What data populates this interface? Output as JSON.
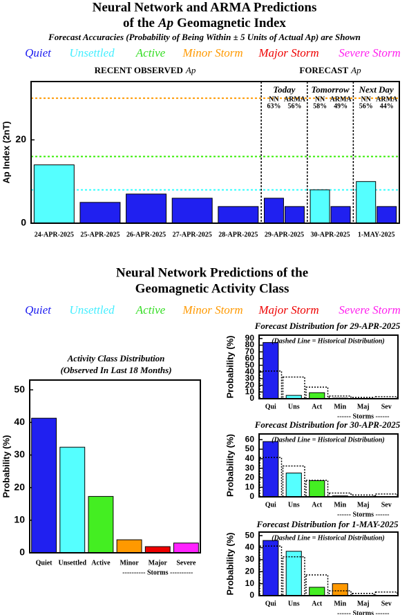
{
  "chart_data": [
    {
      "type": "bar",
      "title": [
        "Neural Network and ARMA Predictions",
        "of the",
        "Ap",
        "Geomagnetic Index"
      ],
      "subtitle": "Forecast Accuracies (Probability of Being Within ± 5 Units of Actual Ap) are Shown",
      "legend": [
        {
          "name": "Quiet",
          "color": "#2020f0"
        },
        {
          "name": "Unsettled",
          "color": "#44eeff"
        },
        {
          "name": "Active",
          "color": "#33dd22"
        },
        {
          "name": "Minor Storm",
          "color": "#ff9900"
        },
        {
          "name": "Major Storm",
          "color": "#ee0000"
        },
        {
          "name": "Severe Storm",
          "color": "#ff22ee"
        }
      ],
      "section_labels": [
        [
          "RECENT OBSERVED",
          "Ap"
        ],
        [
          "FORECAST",
          "Ap"
        ]
      ],
      "ylabel": "Ap Index (2nT)",
      "ylim": [
        0,
        34
      ],
      "yticks": [
        0,
        20
      ],
      "categories": [
        "24-APR-2025",
        "25-APR-2025",
        "26-APR-2025",
        "27-APR-2025",
        "28-APR-2025",
        "29-APR-2025",
        "30-APR-2025",
        "1-MAY-2025"
      ],
      "series": [
        {
          "values": [
            14,
            5,
            7,
            6,
            4,
            null,
            null,
            null
          ],
          "colors": [
            "#55ffff",
            "#2020f0",
            "#2020f0",
            "#2020f0",
            "#2020f0",
            null,
            null,
            null
          ]
        },
        {
          "name": "NN",
          "values": [
            null,
            null,
            null,
            null,
            null,
            6,
            8,
            10
          ],
          "colors": [
            null,
            null,
            null,
            null,
            null,
            "#2020f0",
            "#55ffff",
            "#55ffff"
          ]
        },
        {
          "name": "ARMA",
          "values": [
            null,
            null,
            null,
            null,
            null,
            4,
            4,
            4
          ],
          "colors": [
            null,
            null,
            null,
            null,
            null,
            "#2020f0",
            "#2020f0",
            "#2020f0"
          ]
        }
      ],
      "forecast_days": [
        "Today",
        "Tomorrow",
        "Next Day"
      ],
      "accuracy_labels": [
        [
          "63%",
          "56%"
        ],
        [
          "58%",
          "49%"
        ],
        [
          "56%",
          "44%"
        ]
      ],
      "thresholds": [
        {
          "value": 30,
          "color": "#ff9900"
        },
        {
          "value": 16,
          "color": "#33ee00"
        },
        {
          "value": 8,
          "color": "#33ffff"
        }
      ]
    },
    {
      "type": "bar",
      "title": [
        "Neural Network Predictions of the",
        "Geomagnetic Activity Class"
      ],
      "legend": [
        {
          "name": "Quiet",
          "color": "#2020f0"
        },
        {
          "name": "Unsettled",
          "color": "#44eeff"
        },
        {
          "name": "Active",
          "color": "#33dd22"
        },
        {
          "name": "Minor Storm",
          "color": "#ff9900"
        },
        {
          "name": "Major Storm",
          "color": "#ee0000"
        },
        {
          "name": "Severe Storm",
          "color": "#ff22ee"
        }
      ],
      "subtitle": [
        "Activity Class Distribution",
        "(Observed In Last 18 Months)"
      ],
      "ylabel": "Probability (%)",
      "ylim": [
        0,
        53
      ],
      "yticks": [
        0,
        10,
        20,
        30,
        40,
        50
      ],
      "categories": [
        "Quiet",
        "Unsettled",
        "Active",
        "Minor",
        "Major",
        "Severe"
      ],
      "group_label": "---------- Storms ----------",
      "series": [
        {
          "values": [
            41.3,
            32.4,
            17.3,
            4.0,
            1.9,
            3.0
          ],
          "colors": [
            "#2020f0",
            "#55ffff",
            "#44ee22",
            "#ff9900",
            "#ee0000",
            "#ff22ff"
          ]
        }
      ]
    },
    {
      "type": "bar",
      "title": "Forecast Distribution for 29-APR-2025",
      "note": "(Dashed Line = Historical Distribution)",
      "ylabel": "Probability (%)",
      "ylim": [
        0,
        95
      ],
      "yticks": [
        0,
        10,
        20,
        30,
        40,
        50,
        60,
        70,
        80,
        90
      ],
      "categories": [
        "Qui",
        "Uns",
        "Act",
        "Min",
        "Maj",
        "Sev"
      ],
      "group_label": "------ Storms ------",
      "series": [
        {
          "values": [
            84,
            5,
            9,
            1,
            0,
            0
          ],
          "colors": [
            "#2020f0",
            "#55ffff",
            "#44ee22",
            "#ff9900",
            "#ee0000",
            "#ff22ff"
          ]
        },
        {
          "values": [
            41.3,
            32.4,
            17.3,
            4.0,
            1.9,
            3.0
          ],
          "style": "dashed"
        }
      ]
    },
    {
      "type": "bar",
      "title": "Forecast Distribution for 30-APR-2025",
      "note": "(Dashed Line = Historical Distribution)",
      "ylabel": "Probability (%)",
      "ylim": [
        0,
        66
      ],
      "yticks": [
        0,
        10,
        20,
        30,
        40,
        50,
        60
      ],
      "categories": [
        "Qui",
        "Uns",
        "Act",
        "Min",
        "Maj",
        "Sev"
      ],
      "group_label": "------ Storms ------",
      "series": [
        {
          "values": [
            58,
            25,
            17,
            1,
            0,
            0
          ],
          "colors": [
            "#2020f0",
            "#55ffff",
            "#44ee22",
            "#ff9900",
            "#ee0000",
            "#ff22ff"
          ]
        },
        {
          "values": [
            41.3,
            32.4,
            17.3,
            4.0,
            1.9,
            3.0
          ],
          "style": "dashed"
        }
      ]
    },
    {
      "type": "bar",
      "title": "Forecast Distribution for 1-MAY-2025",
      "note": "(Dashed Line = Historical Distribution)",
      "ylabel": "Probability (%)",
      "ylim": [
        0,
        53
      ],
      "yticks": [
        0,
        10,
        20,
        30,
        40,
        50
      ],
      "categories": [
        "Qui",
        "Uns",
        "Act",
        "Min",
        "Maj",
        "Sev"
      ],
      "group_label": "------ Storms ------",
      "series": [
        {
          "values": [
            46,
            37,
            7,
            10,
            0,
            0
          ],
          "colors": [
            "#2020f0",
            "#55ffff",
            "#44ee22",
            "#ff9900",
            "#ee0000",
            "#ff22ff"
          ]
        },
        {
          "values": [
            41.3,
            32.4,
            17.3,
            4.0,
            1.9,
            3.0
          ],
          "style": "dashed"
        }
      ]
    }
  ]
}
